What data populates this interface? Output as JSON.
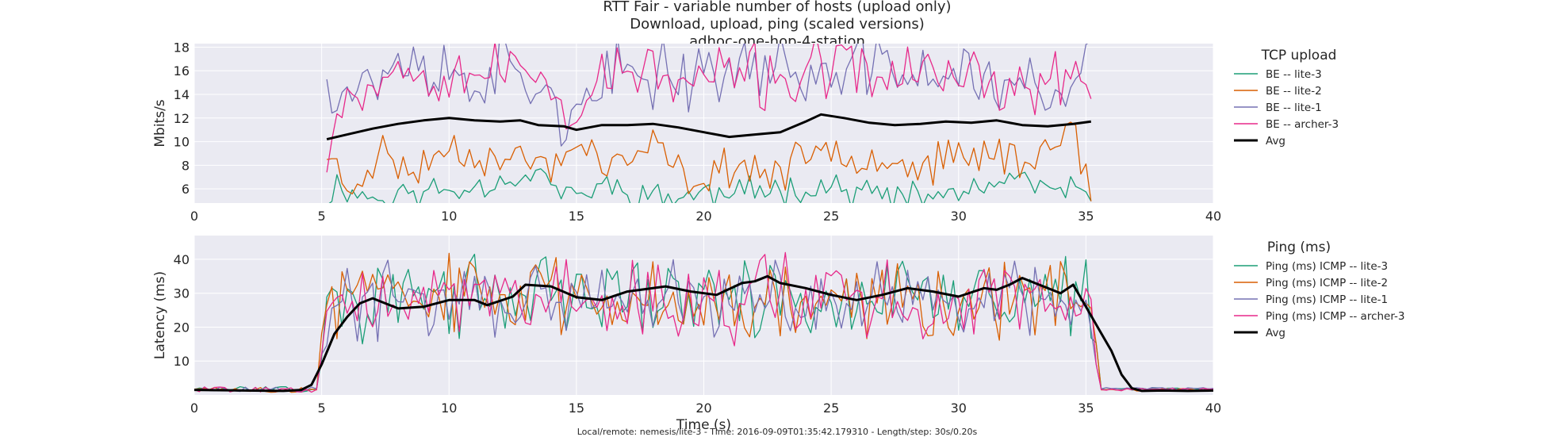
{
  "title_lines": [
    "RTT Fair - variable number of hosts (upload only)",
    "Download, upload, ping (scaled versions)",
    "adhoc-one-hop-4-station"
  ],
  "footer": "Local/remote: nemesis/lite-3 - Time: 2016-09-09T01:35:42.179310 - Length/step: 30s/0.20s",
  "colors": {
    "background": "#eaeaf2",
    "lite3": "#1b9e77",
    "lite2": "#d95f02",
    "lite1": "#7570b3",
    "archer3": "#e7298a",
    "avg": "#000000"
  },
  "chart_data": [
    {
      "type": "line",
      "ylabel": "Mbits/s",
      "xlabel": "",
      "xlim": [
        0,
        40
      ],
      "ylim": [
        4.8,
        18.3
      ],
      "xticks": [
        0,
        5,
        10,
        15,
        20,
        25,
        30,
        35,
        40
      ],
      "yticks": [
        6,
        8,
        10,
        12,
        14,
        16,
        18
      ],
      "grid": true,
      "legend_title": "TCP upload",
      "legend_position": "right",
      "x_range": [
        5.2,
        35.2
      ],
      "step": 0.2,
      "series": [
        {
          "name": "BE -- lite-3",
          "color_key": "lite3",
          "mean": 5.8,
          "spread": 1.0,
          "seed": 11,
          "anchors": [
            [
              5.2,
              5.4
            ],
            [
              5.6,
              6.3
            ],
            [
              7,
              5.2
            ],
            [
              8.5,
              5.6
            ],
            [
              10.5,
              6.0
            ],
            [
              13.5,
              7.4
            ],
            [
              14.8,
              5.2
            ],
            [
              16,
              6.3
            ],
            [
              18,
              5.3
            ],
            [
              21,
              5.6
            ],
            [
              24.5,
              6.3
            ],
            [
              28,
              5.1
            ],
            [
              30.5,
              5.8
            ],
            [
              32,
              6.6
            ],
            [
              33.5,
              6.0
            ],
            [
              35,
              5.4
            ]
          ]
        },
        {
          "name": "BE -- lite-2",
          "color_key": "lite2",
          "mean": 8.6,
          "spread": 1.3,
          "seed": 23,
          "anchors": [
            [
              5.2,
              9.3
            ],
            [
              6,
              5.6
            ],
            [
              7.3,
              9.2
            ],
            [
              8.5,
              7.3
            ],
            [
              10,
              9.6
            ],
            [
              12,
              8.5
            ],
            [
              14.5,
              8.0
            ],
            [
              15.2,
              10.2
            ],
            [
              16.5,
              7.7
            ],
            [
              18,
              9.5
            ],
            [
              19.5,
              6.5
            ],
            [
              21,
              8.0
            ],
            [
              23,
              7.3
            ],
            [
              25,
              9.7
            ],
            [
              27,
              8.5
            ],
            [
              29,
              8.0
            ],
            [
              31,
              9.2
            ],
            [
              33,
              8.3
            ],
            [
              34.5,
              11.8
            ],
            [
              35.2,
              5.2
            ]
          ]
        },
        {
          "name": "BE -- lite-1",
          "color_key": "lite1",
          "mean": 15.5,
          "spread": 2.3,
          "seed": 37,
          "anchors": [
            [
              5.2,
              15.7
            ],
            [
              6,
              14.5
            ],
            [
              7.5,
              15.8
            ],
            [
              9,
              16.5
            ],
            [
              10.5,
              15.0
            ],
            [
              12,
              16.2
            ],
            [
              13.5,
              14.8
            ],
            [
              15,
              11.5
            ],
            [
              16.5,
              15.5
            ],
            [
              18.5,
              16.0
            ],
            [
              20.5,
              15.8
            ],
            [
              22,
              16.3
            ],
            [
              23.5,
              16.5
            ],
            [
              25,
              15.0
            ],
            [
              26.5,
              16.8
            ],
            [
              28.5,
              15.5
            ],
            [
              30.5,
              16.0
            ],
            [
              32.5,
              14.5
            ],
            [
              34.2,
              13.0
            ],
            [
              35,
              18.3
            ]
          ]
        },
        {
          "name": "BE -- archer-3",
          "color_key": "archer3",
          "mean": 15.8,
          "spread": 2.0,
          "seed": 53,
          "anchors": [
            [
              5.2,
              9.5
            ],
            [
              5.8,
              14.0
            ],
            [
              7,
              15.2
            ],
            [
              8.5,
              16.5
            ],
            [
              10,
              15.8
            ],
            [
              12,
              16.0
            ],
            [
              13.5,
              15.5
            ],
            [
              14.8,
              12.5
            ],
            [
              16,
              15.5
            ],
            [
              17.5,
              16.2
            ],
            [
              19,
              14.5
            ],
            [
              21,
              16.0
            ],
            [
              23,
              15.0
            ],
            [
              25,
              16.5
            ],
            [
              27,
              15.5
            ],
            [
              29,
              16.2
            ],
            [
              31,
              15.0
            ],
            [
              33,
              14.5
            ],
            [
              34.5,
              15.5
            ],
            [
              35.2,
              16.0
            ]
          ]
        },
        {
          "name": "Avg",
          "color_key": "avg",
          "width": 3,
          "points": [
            [
              5.2,
              10.2
            ],
            [
              6,
              10.6
            ],
            [
              7,
              11.1
            ],
            [
              8,
              11.5
            ],
            [
              9,
              11.8
            ],
            [
              10,
              12.0
            ],
            [
              11,
              11.8
            ],
            [
              12,
              11.7
            ],
            [
              12.8,
              11.8
            ],
            [
              13.5,
              11.4
            ],
            [
              14.5,
              11.3
            ],
            [
              15,
              11.0
            ],
            [
              16,
              11.4
            ],
            [
              17,
              11.4
            ],
            [
              18,
              11.5
            ],
            [
              19,
              11.2
            ],
            [
              20,
              10.8
            ],
            [
              21,
              10.4
            ],
            [
              22,
              10.6
            ],
            [
              23,
              10.8
            ],
            [
              24,
              11.7
            ],
            [
              24.6,
              12.3
            ],
            [
              25.5,
              12.0
            ],
            [
              26.5,
              11.6
            ],
            [
              27.5,
              11.4
            ],
            [
              28.5,
              11.5
            ],
            [
              29.5,
              11.7
            ],
            [
              30.5,
              11.6
            ],
            [
              31.5,
              11.8
            ],
            [
              32.5,
              11.4
            ],
            [
              33.5,
              11.3
            ],
            [
              34.5,
              11.5
            ],
            [
              35.2,
              11.7
            ]
          ]
        }
      ]
    },
    {
      "type": "line",
      "ylabel": "Latency (ms)",
      "xlabel": "Time (s)",
      "xlim": [
        0,
        40
      ],
      "ylim": [
        0,
        47
      ],
      "xticks": [
        0,
        5,
        10,
        15,
        20,
        25,
        30,
        35,
        40
      ],
      "yticks": [
        10,
        20,
        30,
        40
      ],
      "grid": true,
      "legend_title": "Ping (ms)",
      "legend_position": "right",
      "x_range": [
        0,
        40
      ],
      "step": 0.2,
      "series": [
        {
          "name": "Ping (ms) ICMP -- lite-3",
          "color_key": "lite3",
          "mean": 29,
          "spread": 9.5,
          "seed": 71,
          "rise": [
            4.8,
            5.2
          ],
          "fall": [
            35.0,
            35.6
          ],
          "idle": 1.7
        },
        {
          "name": "Ping (ms) ICMP -- lite-2",
          "color_key": "lite2",
          "mean": 29,
          "spread": 9.5,
          "seed": 83,
          "rise": [
            4.8,
            5.2
          ],
          "fall": [
            35.0,
            35.6
          ],
          "idle": 1.5
        },
        {
          "name": "Ping (ms) ICMP -- lite-1",
          "color_key": "lite1",
          "mean": 27,
          "spread": 8.5,
          "seed": 97,
          "rise": [
            4.8,
            5.3
          ],
          "fall": [
            35.0,
            35.6
          ],
          "idle": 1.8
        },
        {
          "name": "Ping (ms) ICMP -- archer-3",
          "color_key": "archer3",
          "mean": 28,
          "spread": 9.0,
          "seed": 109,
          "rise": [
            4.8,
            5.3
          ],
          "fall": [
            35.0,
            35.6
          ],
          "idle": 1.6
        },
        {
          "name": "Avg",
          "color_key": "avg",
          "width": 3,
          "points": [
            [
              0,
              1.5
            ],
            [
              2,
              1.3
            ],
            [
              3.5,
              1.2
            ],
            [
              4.2,
              1.5
            ],
            [
              4.6,
              3
            ],
            [
              5,
              9
            ],
            [
              5.5,
              18
            ],
            [
              6,
              23
            ],
            [
              6.5,
              27
            ],
            [
              7,
              28.5
            ],
            [
              7.5,
              27
            ],
            [
              8,
              25.5
            ],
            [
              9,
              26
            ],
            [
              10,
              28
            ],
            [
              11,
              28
            ],
            [
              11.5,
              26.5
            ],
            [
              12.5,
              29
            ],
            [
              13,
              32.5
            ],
            [
              14,
              32
            ],
            [
              15,
              28.8
            ],
            [
              16,
              28
            ],
            [
              17,
              30.5
            ],
            [
              18.5,
              32
            ],
            [
              19.5,
              30.5
            ],
            [
              20.5,
              29.5
            ],
            [
              21.5,
              33
            ],
            [
              22,
              33.5
            ],
            [
              22.5,
              35
            ],
            [
              23,
              33
            ],
            [
              24,
              31.5
            ],
            [
              25,
              29.5
            ],
            [
              26,
              28
            ],
            [
              27,
              29.5
            ],
            [
              28,
              31.5
            ],
            [
              29,
              30.5
            ],
            [
              30,
              29
            ],
            [
              31,
              31.5
            ],
            [
              31.5,
              31
            ],
            [
              32,
              32.5
            ],
            [
              32.5,
              34.5
            ],
            [
              33,
              33
            ],
            [
              34,
              30
            ],
            [
              34.5,
              32.5
            ],
            [
              35,
              26
            ],
            [
              35.5,
              19.5
            ],
            [
              36,
              13
            ],
            [
              36.4,
              6
            ],
            [
              36.8,
              2
            ],
            [
              37.2,
              1.2
            ],
            [
              38,
              1.3
            ],
            [
              39,
              1.2
            ],
            [
              40,
              1.3
            ]
          ]
        }
      ]
    }
  ]
}
